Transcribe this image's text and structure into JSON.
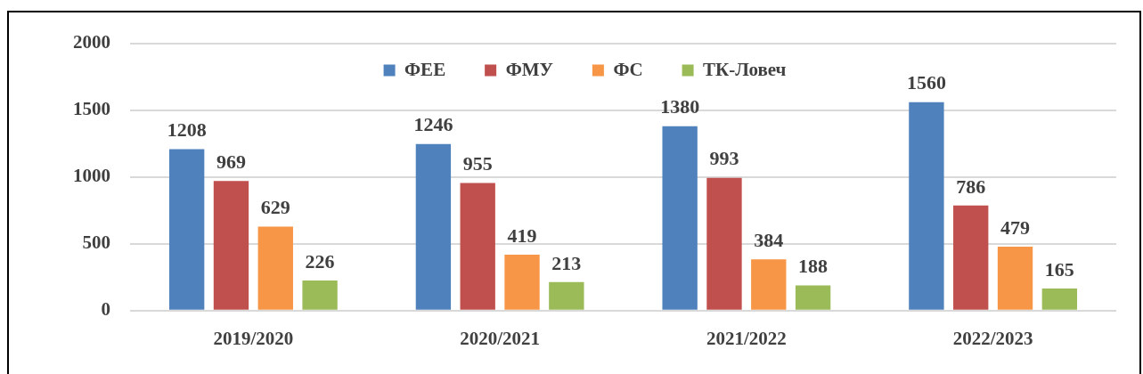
{
  "chart_data": {
    "type": "bar",
    "categories": [
      "2019/2020",
      "2020/2021",
      "2021/2022",
      "2022/2023"
    ],
    "series": [
      {
        "name": "ФЕЕ",
        "color": "#4f81bd",
        "values": [
          1208,
          1246,
          1380,
          1560
        ]
      },
      {
        "name": "ФМУ",
        "color": "#c0504d",
        "values": [
          969,
          955,
          993,
          786
        ]
      },
      {
        "name": "ФС",
        "color": "#f79646",
        "values": [
          629,
          419,
          384,
          479
        ]
      },
      {
        "name": "ТК-Ловеч",
        "color": "#9bbb59",
        "values": [
          226,
          213,
          188,
          165
        ]
      }
    ],
    "ylim": [
      0,
      2000
    ],
    "yticks": [
      0,
      500,
      1000,
      1500,
      2000
    ],
    "grid": "y",
    "legend": "top",
    "data_labels": true
  }
}
